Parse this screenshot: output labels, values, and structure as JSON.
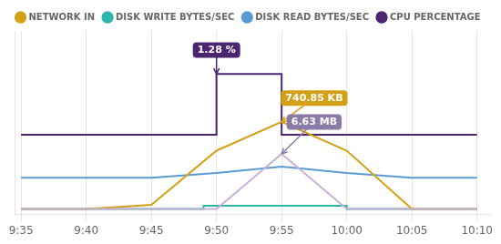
{
  "chart_data": {
    "type": "line",
    "xlim": [
      -0.5,
      36
    ],
    "xticks": [
      {
        "value": 0,
        "label": "9:35"
      },
      {
        "value": 5,
        "label": "9:40"
      },
      {
        "value": 10,
        "label": "9:45"
      },
      {
        "value": 15,
        "label": "9:50"
      },
      {
        "value": 20,
        "label": "9:55"
      },
      {
        "value": 25,
        "label": "10:00"
      },
      {
        "value": 30,
        "label": "10:05"
      },
      {
        "value": 35,
        "label": "10:10"
      }
    ],
    "ylim": [
      0,
      1.15
    ],
    "yticks": [],
    "grid": "x",
    "tick_labels": "x",
    "legend": "top",
    "series": [
      {
        "name": "CPU PERCENTAGE",
        "color": "#4a2570",
        "x": [
          0,
          5,
          10,
          15,
          15,
          20,
          20,
          25,
          30,
          35
        ],
        "values": [
          0.5,
          0.5,
          0.5,
          0.5,
          0.88,
          0.88,
          0.5,
          0.5,
          0.5,
          0.5
        ]
      },
      {
        "name": "DISK READ BYTES/SEC",
        "color": "#5b9bd5",
        "x": [
          0,
          5,
          10,
          15,
          20,
          25,
          30,
          35
        ],
        "values": [
          0.23,
          0.23,
          0.23,
          0.26,
          0.3,
          0.26,
          0.23,
          0.23
        ]
      },
      {
        "name": "DISK WRITE BYTES/SEC",
        "color": "#2ab7a9",
        "x": [
          0,
          5,
          10,
          14,
          14,
          25,
          25,
          30,
          35
        ],
        "values": [
          0.035,
          0.035,
          0.035,
          0.035,
          0.055,
          0.055,
          0.035,
          0.035,
          0.035
        ]
      },
      {
        "name": "NETWORK IN",
        "color": "#d4a017",
        "x": [
          0,
          5,
          10,
          15,
          20,
          25,
          30,
          35
        ],
        "values": [
          0.035,
          0.035,
          0.06,
          0.4,
          0.58,
          0.4,
          0.035,
          0.035
        ]
      },
      {
        "color": "#c8b0d8",
        "x": [
          0,
          5,
          10,
          15,
          20,
          25,
          30,
          35
        ],
        "values": [
          0.035,
          0.035,
          0.035,
          0.035,
          0.38,
          0.035,
          0.035,
          0.035
        ]
      }
    ],
    "annotations": [
      {
        "text": "1.28 %",
        "x": 15,
        "y": 0.88,
        "text_x": 15,
        "text_y": 1.03,
        "color": "#4a2570"
      },
      {
        "text": "740.85 KB",
        "x": 20,
        "y": 0.58,
        "text_x": 22.5,
        "text_y": 0.73,
        "color": "#d4a017"
      },
      {
        "text": "6.63 MB",
        "x": 20,
        "y": 0.38,
        "text_x": 22.5,
        "text_y": 0.58,
        "color": "#8b7ba8"
      }
    ]
  }
}
